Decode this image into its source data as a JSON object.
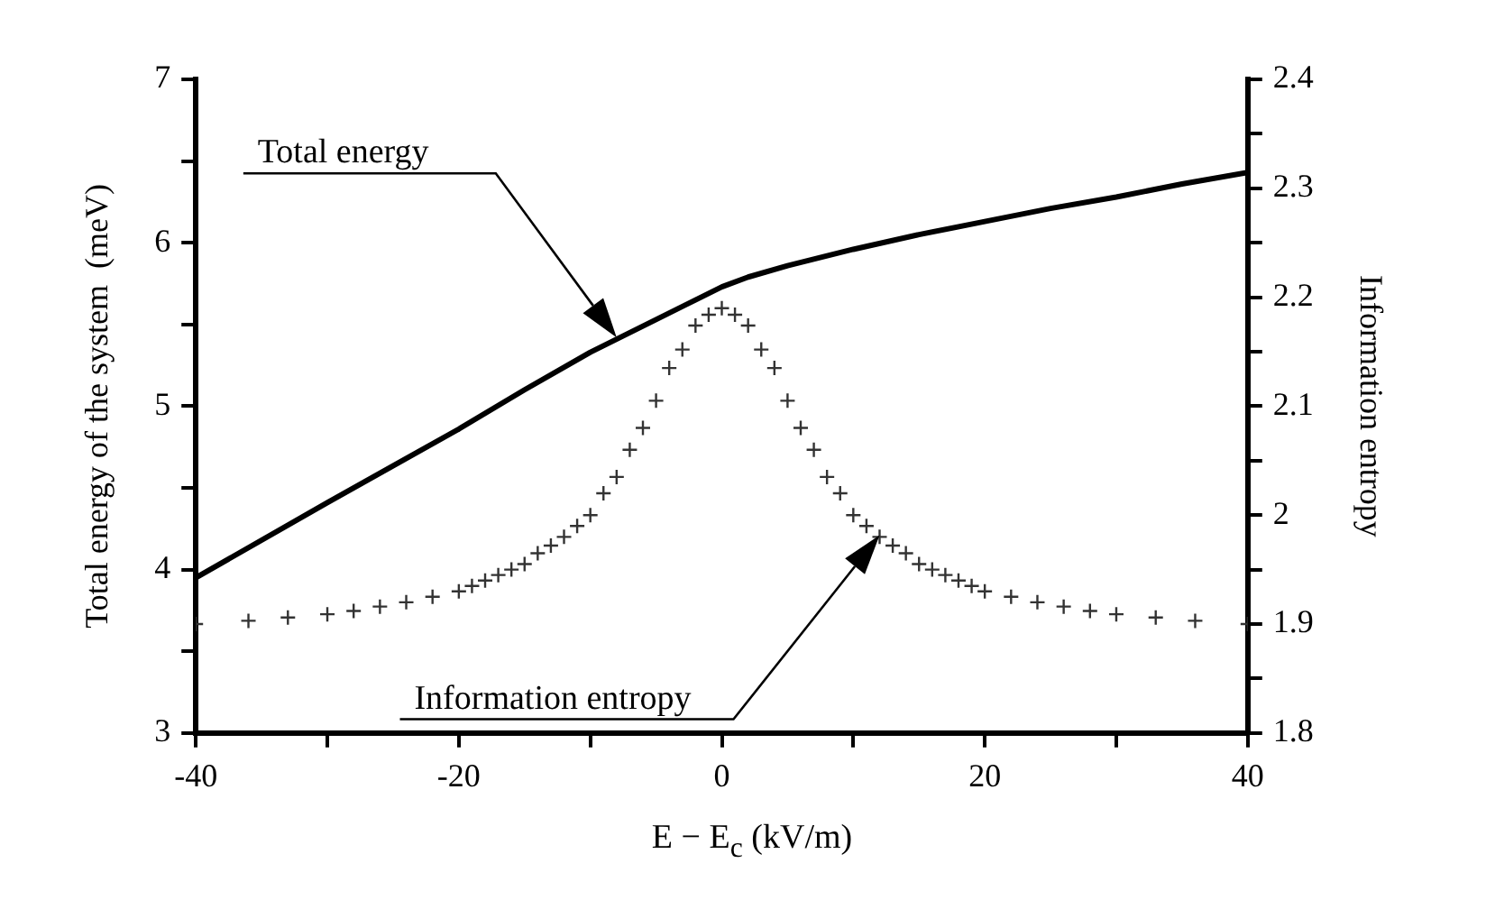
{
  "chart_data": {
    "type": "line",
    "xlabel": "E − E$_{c}$ (kV/m)",
    "ylabel": "Total energy of the system  (meV)",
    "y2label": "Information entropy",
    "xlim": [
      -40,
      40
    ],
    "xticks": [
      -40,
      {
        "value": -30,
        "label": null
      },
      -20,
      {
        "value": -10,
        "label": null
      },
      0,
      {
        "value": 10,
        "label": null
      },
      20,
      {
        "value": 30,
        "label": null
      },
      40
    ],
    "ylim": [
      3,
      7
    ],
    "yticks": [
      3,
      {
        "value": 3.5,
        "label": null
      },
      4,
      {
        "value": 4.5,
        "label": null
      },
      5,
      {
        "value": 5.5,
        "label": null
      },
      6,
      {
        "value": 6.5,
        "label": null
      },
      7
    ],
    "y2lim": [
      1.8,
      2.4
    ],
    "y2ticks": [
      1.8,
      {
        "value": 1.85,
        "label": null
      },
      1.9,
      {
        "value": 1.95,
        "label": null
      },
      2.0,
      {
        "value": 2.05,
        "label": null
      },
      2.1,
      {
        "value": 2.15,
        "label": null
      },
      2.2,
      {
        "value": 2.25,
        "label": null
      },
      2.3,
      {
        "value": 2.35,
        "label": null
      },
      2.4
    ],
    "grid": false,
    "legend": false,
    "series": [
      {
        "color": "#000000",
        "marker": "none",
        "line_style": "solid",
        "x": [
          -40,
          -30,
          -20,
          -15,
          -10,
          -5,
          -2,
          0,
          2,
          5,
          10,
          15,
          20,
          25,
          30,
          35,
          40
        ],
        "values": [
          3.95,
          4.41,
          4.86,
          5.1,
          5.33,
          5.53,
          5.65,
          5.73,
          5.79,
          5.86,
          5.96,
          6.05,
          6.13,
          6.21,
          6.28,
          6.36,
          6.43
        ]
      },
      {
        "type": "scatter",
        "axis": "y2",
        "color": "#333333",
        "marker": "cross",
        "x": [
          -40,
          -36,
          -33,
          -30,
          -28,
          -26,
          -24,
          -22,
          -20,
          -19,
          -18,
          -17,
          -16,
          -15,
          -14,
          -13,
          -12,
          -11,
          -10,
          -9,
          -8,
          -7,
          -6,
          -5,
          -4,
          -3,
          -2,
          -1,
          0,
          1,
          2,
          3,
          4,
          5,
          6,
          7,
          8,
          9,
          10,
          11,
          12,
          13,
          14,
          15,
          16,
          17,
          18,
          19,
          20,
          22,
          24,
          26,
          28,
          30,
          33,
          36,
          40
        ],
        "values": [
          1.9,
          1.903,
          1.906,
          1.909,
          1.912,
          1.916,
          1.92,
          1.925,
          1.93,
          1.935,
          1.94,
          1.945,
          1.95,
          1.955,
          1.965,
          1.972,
          1.98,
          1.99,
          2.0,
          2.02,
          2.035,
          2.06,
          2.08,
          2.105,
          2.135,
          2.152,
          2.174,
          2.184,
          2.19,
          2.184,
          2.174,
          2.152,
          2.135,
          2.105,
          2.08,
          2.06,
          2.035,
          2.02,
          2.0,
          1.99,
          1.98,
          1.972,
          1.965,
          1.955,
          1.95,
          1.945,
          1.94,
          1.935,
          1.93,
          1.925,
          1.92,
          1.916,
          1.912,
          1.909,
          1.906,
          1.903,
          1.9
        ]
      }
    ],
    "annotations": [
      "Total energy",
      "Information entropy"
    ]
  }
}
